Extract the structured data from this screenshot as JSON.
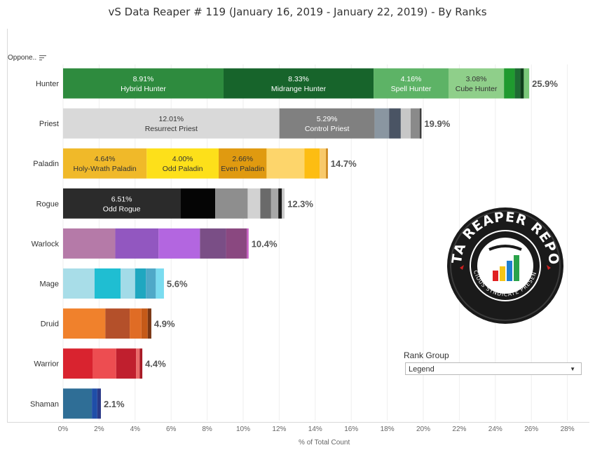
{
  "title": "vS Data Reaper #  119 (January 16, 2019 - January 22, 2019) - By Ranks",
  "opponent_header": "Oppone..",
  "legend": {
    "title": "Rank Group",
    "selected": "Legend"
  },
  "logo": {
    "text": "DATA REAPER REPORT",
    "subtext": "VICIOUS SYNDICATE PRESENTS"
  },
  "chart_data": {
    "type": "bar",
    "orientation": "horizontal",
    "stacked": true,
    "xlabel": "% of Total Count",
    "xlim": [
      0,
      28
    ],
    "xticks": [
      "0%",
      "2%",
      "4%",
      "6%",
      "8%",
      "10%",
      "12%",
      "14%",
      "16%",
      "18%",
      "20%",
      "22%",
      "24%",
      "26%",
      "28%"
    ],
    "grid": true,
    "rows": [
      {
        "name": "Hunter",
        "total_label": "25.9%",
        "segments": [
          {
            "value": 8.91,
            "pct": "8.91%",
            "label": "Hybrid Hunter",
            "color": "#2e8b3e",
            "text_color": "#ffffff"
          },
          {
            "value": 8.33,
            "pct": "8.33%",
            "label": "Midrange Hunter",
            "color": "#17642b",
            "text_color": "#ffffff"
          },
          {
            "value": 4.16,
            "pct": "4.16%",
            "label": "Spell Hunter",
            "color": "#5db366",
            "text_color": "#ffffff"
          },
          {
            "value": 3.08,
            "pct": "3.08%",
            "label": "Cube Hunter",
            "color": "#8fcf8a",
            "text_color": "#333333"
          },
          {
            "value": 0.6,
            "color": "#1f9a2f"
          },
          {
            "value": 0.3,
            "color": "#1e6b33"
          },
          {
            "value": 0.2,
            "color": "#0e3f1a"
          },
          {
            "value": 0.3,
            "color": "#7ac879"
          }
        ]
      },
      {
        "name": "Priest",
        "total_label": "19.9%",
        "segments": [
          {
            "value": 12.01,
            "pct": "12.01%",
            "label": "Resurrect Priest",
            "color": "#d9d9d9",
            "text_color": "#333333"
          },
          {
            "value": 5.29,
            "pct": "5.29%",
            "label": "Control Priest",
            "color": "#808080",
            "text_color": "#ffffff"
          },
          {
            "value": 0.8,
            "color": "#8a96a1"
          },
          {
            "value": 0.65,
            "color": "#4a5464"
          },
          {
            "value": 0.55,
            "color": "#c7c7c7"
          },
          {
            "value": 0.5,
            "color": "#8a8a8a"
          },
          {
            "value": 0.1,
            "color": "#3d3d3d"
          }
        ]
      },
      {
        "name": "Paladin",
        "total_label": "14.7%",
        "segments": [
          {
            "value": 4.64,
            "pct": "4.64%",
            "label": "Holy-Wrath Paladin",
            "color": "#f0b929",
            "text_color": "#333333"
          },
          {
            "value": 4.0,
            "pct": "4.00%",
            "label": "Odd Paladin",
            "color": "#fde01a",
            "text_color": "#333333"
          },
          {
            "value": 2.66,
            "pct": "2.66%",
            "label": "Even Paladin",
            "color": "#e09a10",
            "text_color": "#333333"
          },
          {
            "value": 2.1,
            "color": "#fdd56b"
          },
          {
            "value": 0.85,
            "color": "#fdbd12"
          },
          {
            "value": 0.35,
            "color": "#f8c96a"
          },
          {
            "value": 0.1,
            "color": "#c88010"
          }
        ]
      },
      {
        "name": "Rogue",
        "total_label": "12.3%",
        "segments": [
          {
            "value": 6.51,
            "pct": "6.51%",
            "label": "Odd Rogue",
            "color": "#2b2b2b",
            "text_color": "#ffffff"
          },
          {
            "value": 1.94,
            "color": "#050505"
          },
          {
            "value": 1.8,
            "color": "#8e8e8e"
          },
          {
            "value": 0.7,
            "color": "#d2d2d2"
          },
          {
            "value": 0.6,
            "color": "#6a6a6a"
          },
          {
            "value": 0.4,
            "color": "#a8a8a8"
          },
          {
            "value": 0.2,
            "color": "#1a1a1a"
          },
          {
            "value": 0.15,
            "color": "#cccccc"
          }
        ]
      },
      {
        "name": "Warlock",
        "total_label": "10.4%",
        "segments": [
          {
            "value": 2.9,
            "color": "#b57aa8"
          },
          {
            "value": 2.4,
            "color": "#9257c0"
          },
          {
            "value": 2.3,
            "color": "#b366e0"
          },
          {
            "value": 1.45,
            "color": "#7a4e86"
          },
          {
            "value": 1.15,
            "color": "#8a4880"
          },
          {
            "value": 0.1,
            "color": "#c45bc0"
          }
        ]
      },
      {
        "name": "Mage",
        "total_label": "5.6%",
        "segments": [
          {
            "value": 1.75,
            "color": "#a8dde8"
          },
          {
            "value": 1.45,
            "color": "#1fbed2"
          },
          {
            "value": 0.8,
            "color": "#a2dbe8"
          },
          {
            "value": 0.6,
            "color": "#1fa7c0"
          },
          {
            "value": 0.55,
            "color": "#4fa9c8"
          },
          {
            "value": 0.45,
            "color": "#7adcf0"
          }
        ]
      },
      {
        "name": "Druid",
        "total_label": "4.9%",
        "segments": [
          {
            "value": 2.35,
            "color": "#f0812c"
          },
          {
            "value": 1.35,
            "color": "#b4502a"
          },
          {
            "value": 0.65,
            "color": "#e06c25"
          },
          {
            "value": 0.35,
            "color": "#c55a18"
          },
          {
            "value": 0.2,
            "color": "#7a3714"
          }
        ]
      },
      {
        "name": "Warrior",
        "total_label": "4.4%",
        "segments": [
          {
            "value": 1.65,
            "color": "#d9232f"
          },
          {
            "value": 1.3,
            "color": "#ed4d51"
          },
          {
            "value": 1.1,
            "color": "#c01f2e"
          },
          {
            "value": 0.2,
            "color": "#ea6a6a"
          },
          {
            "value": 0.15,
            "color": "#a81a25"
          }
        ]
      },
      {
        "name": "Shaman",
        "total_label": "2.1%",
        "segments": [
          {
            "value": 1.6,
            "color": "#2f6e96"
          },
          {
            "value": 0.3,
            "color": "#1f4ea8"
          },
          {
            "value": 0.2,
            "color": "#2a3a88"
          }
        ]
      }
    ]
  }
}
